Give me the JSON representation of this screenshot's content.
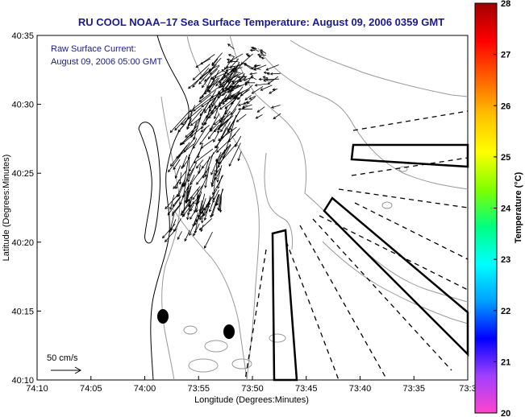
{
  "chart_data": {
    "type": "map",
    "title": "RU COOL  NOAA–17  Sea Surface Temperature:  August 09, 2006 0359 GMT",
    "annotation_lines": [
      "Raw Surface Current:",
      "August 09, 2006 05:00 GMT"
    ],
    "scale_label": "50 cm/s",
    "xlabel": "Longitude (Degrees:Minutes)",
    "ylabel": "Latitude (Degrees:Minutes)",
    "x_ticks": [
      "74:10",
      "74:05",
      "74:00",
      "73:55",
      "73:50",
      "73:45",
      "73:40",
      "73:35",
      "73:3"
    ],
    "y_ticks": [
      "40:35",
      "40:30",
      "40:25",
      "40:20",
      "40:15",
      "40:10"
    ],
    "colorbar": {
      "label": "Temperature (°C)",
      "ticks": [
        "28",
        "27",
        "26",
        "25",
        "24",
        "23",
        "22",
        "21",
        "20"
      ],
      "min": 20,
      "max": 28,
      "colors": [
        "#ff44cc",
        "#a040ff",
        "#0000ff",
        "#00a0ff",
        "#00ffff",
        "#00ff80",
        "#80ff00",
        "#ffff00",
        "#ffc000",
        "#ff6000",
        "#ff0000",
        "#a00000"
      ]
    }
  }
}
